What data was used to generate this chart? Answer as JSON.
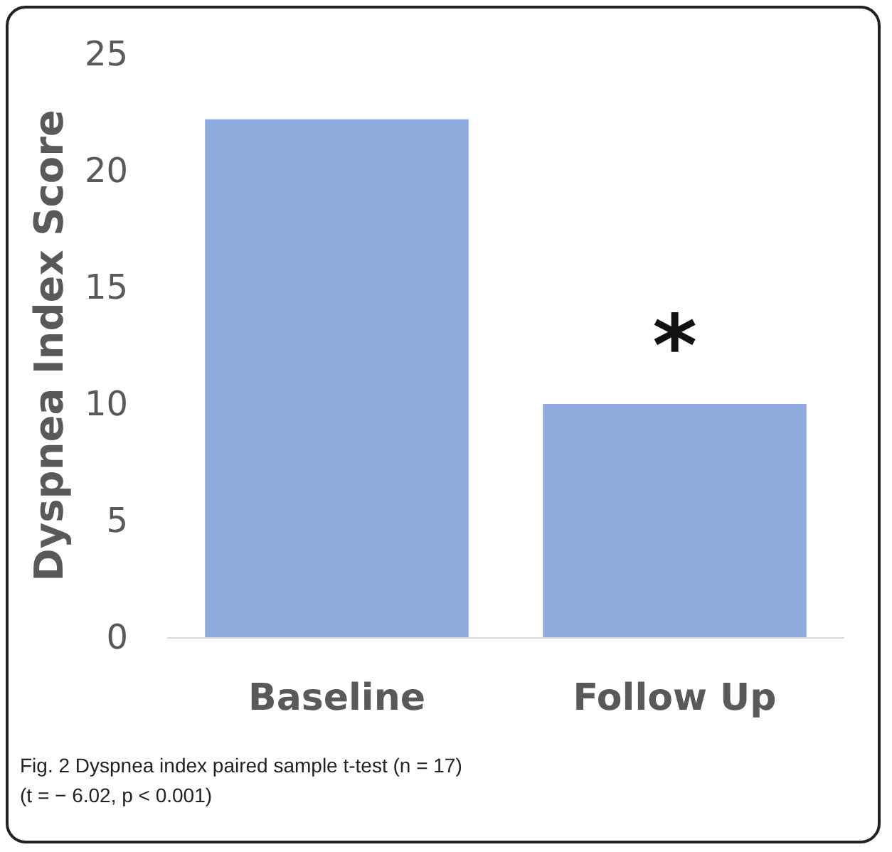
{
  "chart_data": {
    "type": "bar",
    "ylabel": "Dyspnea Index Score",
    "categories": [
      "Baseline",
      "Follow Up"
    ],
    "values": [
      22.2,
      10.0
    ],
    "color": "#8faadc",
    "ylim": [
      0,
      25
    ],
    "yticks": [
      0,
      5,
      10,
      15,
      20,
      25
    ],
    "grid": false,
    "annotations": [
      "*",
      "Fig. 2 Dyspnea index paired sample t-test (n = 17)",
      "(t = − 6.02, p < 0.001)"
    ]
  }
}
